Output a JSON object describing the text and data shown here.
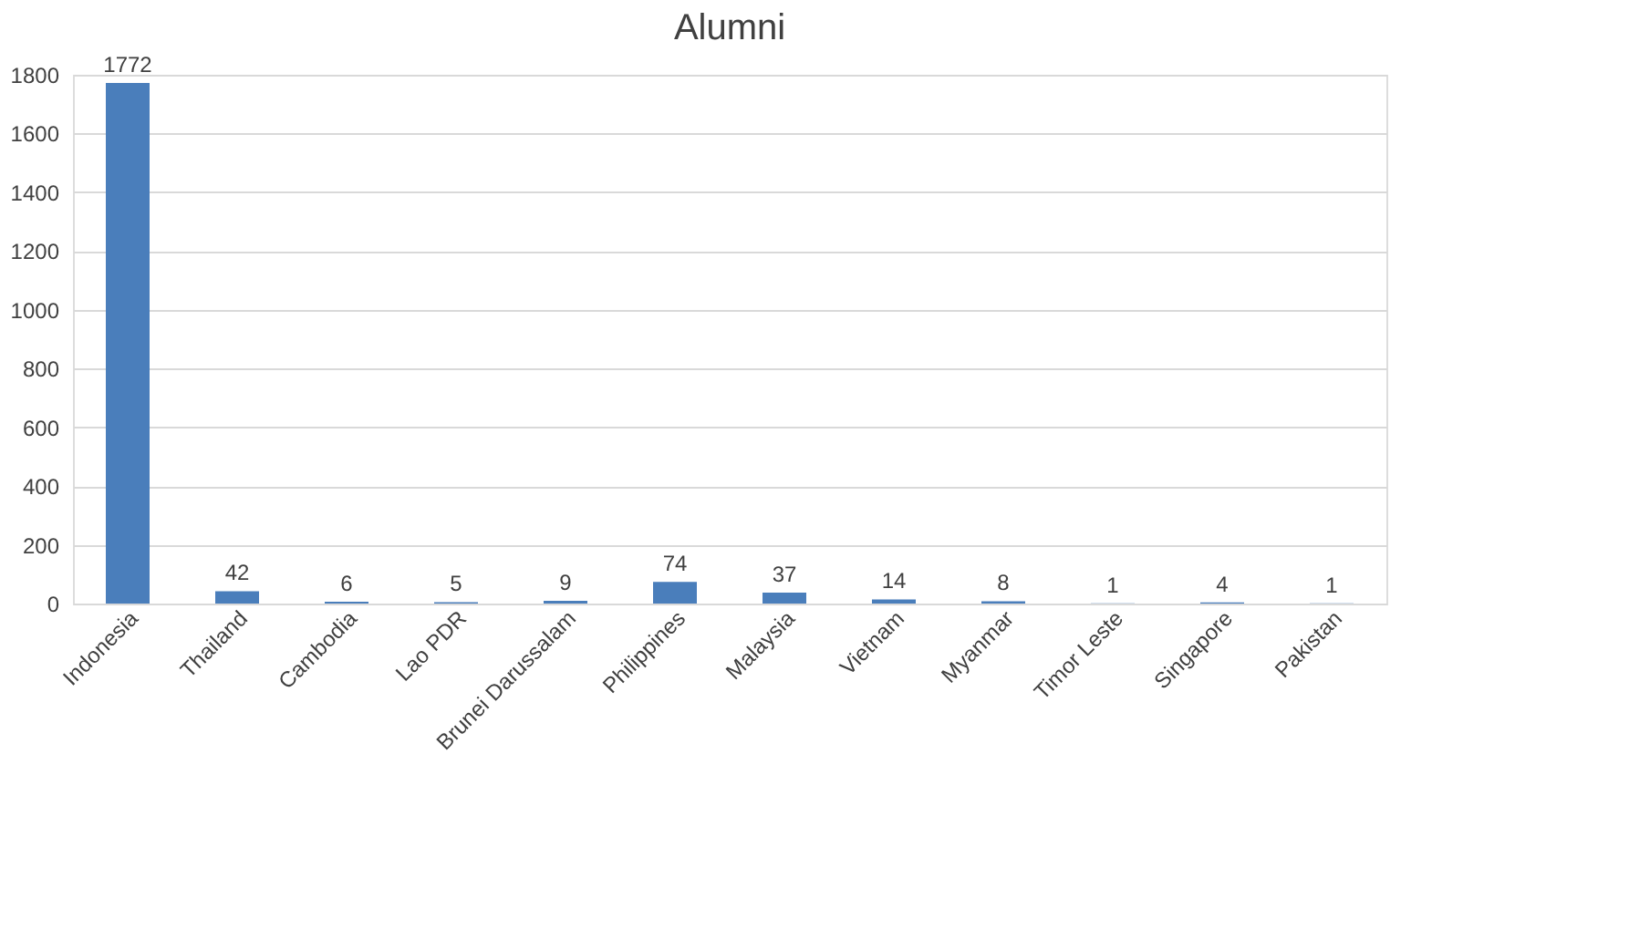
{
  "chart_data": {
    "type": "bar",
    "title": "Alumni",
    "categories": [
      "Indonesia",
      "Thailand",
      "Cambodia",
      "Lao PDR",
      "Brunei Darussalam",
      "Philippines",
      "Malaysia",
      "Vietnam",
      "Myanmar",
      "Timor Leste",
      "Singapore",
      "Pakistan"
    ],
    "values": [
      1772,
      42,
      6,
      5,
      9,
      74,
      37,
      14,
      8,
      1,
      4,
      1
    ],
    "color": "#4a7ebb",
    "ylim": [
      0,
      1800
    ],
    "yticks": [
      0,
      200,
      400,
      600,
      800,
      1000,
      1200,
      1400,
      1600,
      1800
    ],
    "grid": "y",
    "data_labels": true
  }
}
